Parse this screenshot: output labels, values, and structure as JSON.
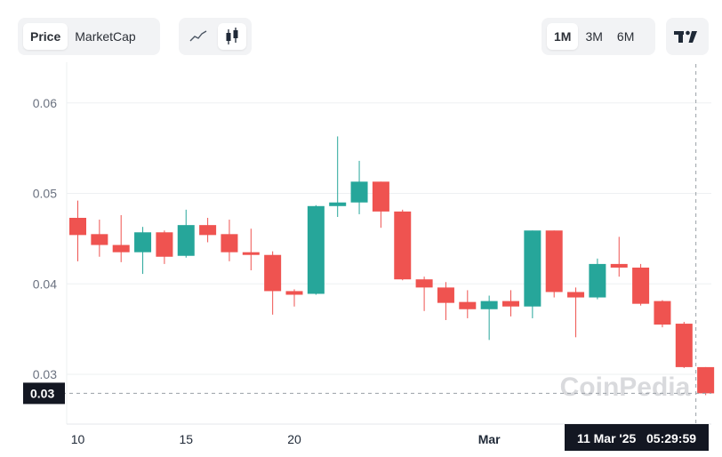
{
  "toolbar": {
    "price_label": "Price",
    "marketcap_label": "MarketCap",
    "style_line_icon": "line-chart-icon",
    "style_candle_icon": "candlestick-icon",
    "ranges": [
      "1M",
      "3M",
      "6M"
    ],
    "active_range": "1M",
    "tradingview_icon": "tradingview-logo-icon"
  },
  "watermark": "CoinPedia",
  "crosshair": {
    "price_label": "0.03",
    "time_label": "11 Mar '25   05:29:59"
  },
  "colors": {
    "up": "#26a69a",
    "down": "#ef5350",
    "grid": "#eef0f2",
    "label_bg": "#131722"
  },
  "chart_data": {
    "type": "candlestick",
    "ylim": [
      0.0245,
      0.0645
    ],
    "y_ticks": [
      0.03,
      0.04,
      0.05,
      0.06
    ],
    "y_tick_labels": [
      "0.03",
      "0.04",
      "0.05",
      "0.06"
    ],
    "x_tick_labels": [
      "10",
      "15",
      "20",
      "Mar"
    ],
    "x_tick_index": [
      0,
      5,
      10,
      19
    ],
    "grid": true,
    "candles": [
      {
        "o": 0.0473,
        "h": 0.0492,
        "l": 0.0425,
        "c": 0.0454
      },
      {
        "o": 0.0455,
        "h": 0.0471,
        "l": 0.043,
        "c": 0.0443
      },
      {
        "o": 0.0443,
        "h": 0.0476,
        "l": 0.0424,
        "c": 0.0435
      },
      {
        "o": 0.0435,
        "h": 0.0463,
        "l": 0.0411,
        "c": 0.0457
      },
      {
        "o": 0.0457,
        "h": 0.0459,
        "l": 0.0422,
        "c": 0.043
      },
      {
        "o": 0.0431,
        "h": 0.0482,
        "l": 0.0429,
        "c": 0.0465
      },
      {
        "o": 0.0465,
        "h": 0.0473,
        "l": 0.0446,
        "c": 0.0454
      },
      {
        "o": 0.0455,
        "h": 0.0471,
        "l": 0.0425,
        "c": 0.0435
      },
      {
        "o": 0.0435,
        "h": 0.0461,
        "l": 0.0415,
        "c": 0.0432
      },
      {
        "o": 0.0432,
        "h": 0.0436,
        "l": 0.0366,
        "c": 0.0392
      },
      {
        "o": 0.0392,
        "h": 0.0394,
        "l": 0.0375,
        "c": 0.0388
      },
      {
        "o": 0.0389,
        "h": 0.0487,
        "l": 0.0388,
        "c": 0.0486
      },
      {
        "o": 0.0486,
        "h": 0.0563,
        "l": 0.0474,
        "c": 0.049
      },
      {
        "o": 0.049,
        "h": 0.0536,
        "l": 0.0477,
        "c": 0.0513
      },
      {
        "o": 0.0513,
        "h": 0.0513,
        "l": 0.0462,
        "c": 0.048
      },
      {
        "o": 0.048,
        "h": 0.0482,
        "l": 0.0404,
        "c": 0.0405
      },
      {
        "o": 0.0405,
        "h": 0.0408,
        "l": 0.037,
        "c": 0.0396
      },
      {
        "o": 0.0396,
        "h": 0.0402,
        "l": 0.036,
        "c": 0.0379
      },
      {
        "o": 0.038,
        "h": 0.0393,
        "l": 0.0362,
        "c": 0.0372
      },
      {
        "o": 0.0372,
        "h": 0.0387,
        "l": 0.0338,
        "c": 0.0381
      },
      {
        "o": 0.0381,
        "h": 0.0393,
        "l": 0.0364,
        "c": 0.0375
      },
      {
        "o": 0.0375,
        "h": 0.0459,
        "l": 0.0362,
        "c": 0.0459
      },
      {
        "o": 0.0459,
        "h": 0.0459,
        "l": 0.0385,
        "c": 0.0391
      },
      {
        "o": 0.0391,
        "h": 0.0396,
        "l": 0.0341,
        "c": 0.0385
      },
      {
        "o": 0.0385,
        "h": 0.0428,
        "l": 0.0383,
        "c": 0.0422
      },
      {
        "o": 0.0422,
        "h": 0.0452,
        "l": 0.0408,
        "c": 0.0418
      },
      {
        "o": 0.0418,
        "h": 0.0422,
        "l": 0.0376,
        "c": 0.0378
      },
      {
        "o": 0.0381,
        "h": 0.0382,
        "l": 0.0352,
        "c": 0.0355
      },
      {
        "o": 0.0356,
        "h": 0.0358,
        "l": 0.0307,
        "c": 0.0308
      },
      {
        "o": 0.0308,
        "h": 0.0308,
        "l": 0.0277,
        "c": 0.0279
      }
    ]
  }
}
